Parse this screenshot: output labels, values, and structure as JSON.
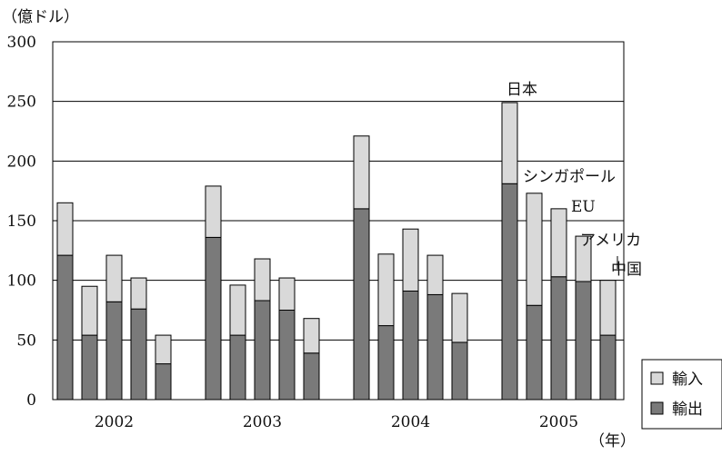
{
  "chart_data": {
    "type": "bar",
    "stacked": true,
    "ylabel": "（億ドル）",
    "xlabel": "（年）",
    "ylim": [
      0,
      300
    ],
    "yticks": [
      "0",
      "50",
      "100",
      "150",
      "200",
      "250",
      "300"
    ],
    "grid": true,
    "legend_position": "bottom-right",
    "legend": [
      {
        "key": "import",
        "label": "輸入",
        "color": "#d9d9d9"
      },
      {
        "key": "export",
        "label": "輸出",
        "color": "#7a7a7a"
      }
    ],
    "partners": [
      "日本",
      "シンガポール",
      "EU",
      "アメリカ",
      "中国"
    ],
    "groups": [
      {
        "year": "2002",
        "export": [
          121,
          54,
          82,
          76,
          30
        ],
        "import": [
          44,
          41,
          39,
          26,
          24
        ]
      },
      {
        "year": "2003",
        "export": [
          136,
          54,
          83,
          75,
          39
        ],
        "import": [
          43,
          42,
          35,
          27,
          29
        ]
      },
      {
        "year": "2004",
        "export": [
          160,
          62,
          91,
          88,
          48
        ],
        "import": [
          61,
          60,
          52,
          33,
          41
        ]
      },
      {
        "year": "2005",
        "export": [
          181,
          79,
          103,
          99,
          54
        ],
        "import": [
          68,
          94,
          57,
          38,
          46
        ]
      }
    ]
  }
}
